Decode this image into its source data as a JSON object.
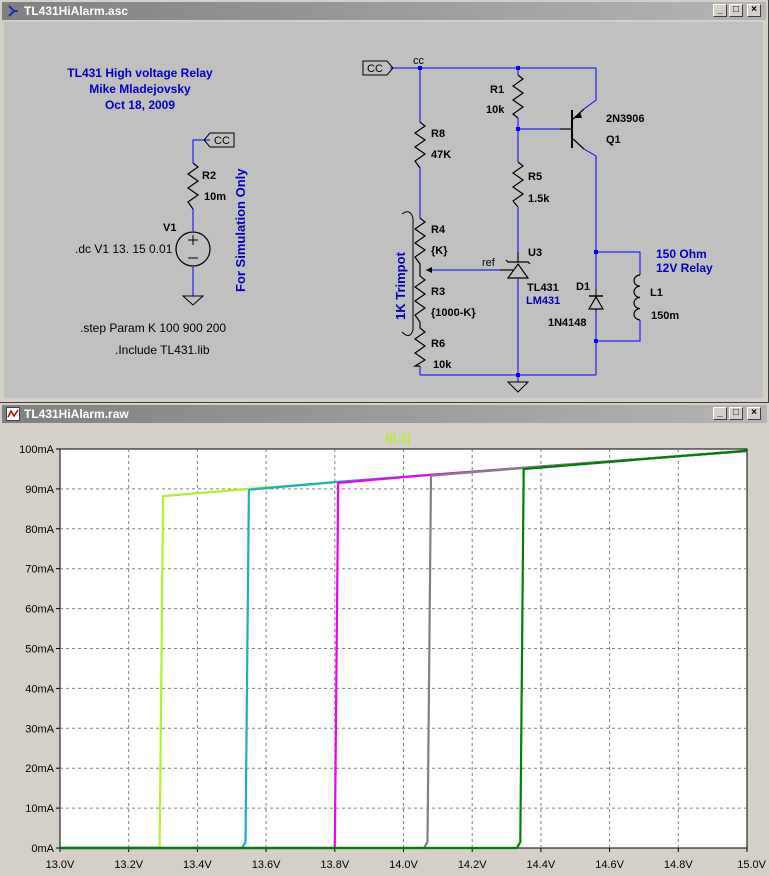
{
  "schematic_window": {
    "title": "TL431HiAlarm.asc",
    "buttons": {
      "minimize": "_",
      "maximize": "□",
      "close": "×"
    },
    "comment": {
      "line1": "TL431 High voltage Relay",
      "line2": "Mike Mladejovsky",
      "line3": "Oct 18, 2009"
    },
    "sim_note": "For Simulation Only",
    "relay_note": {
      "line1": "150 Ohm",
      "line2": "12V Relay"
    },
    "trimpot_label": "1K Trimpot",
    "directives": {
      "dc": ".dc V1 13. 15 0.01",
      "step": ".step Param K 100 900 200",
      "include": ".Include TL431.lib"
    },
    "nets": {
      "cc_left": "CC",
      "cc_right": "CC",
      "cc_node": "cc",
      "ref": "ref"
    },
    "components": {
      "R2": {
        "name": "R2",
        "value": "10m"
      },
      "V1": {
        "name": "V1"
      },
      "R8": {
        "name": "R8",
        "value": "47K"
      },
      "R4": {
        "name": "R4",
        "value": "{K}"
      },
      "R3": {
        "name": "R3",
        "value": "{1000-K}"
      },
      "R6": {
        "name": "R6",
        "value": "10k"
      },
      "R1": {
        "name": "R1",
        "value": "10k"
      },
      "R5": {
        "name": "R5",
        "value": "1.5k"
      },
      "Q1": {
        "name": "Q1",
        "value": "2N3906"
      },
      "U3": {
        "name": "U3",
        "value": "TL431",
        "alt": "LM431"
      },
      "D1": {
        "name": "D1",
        "value": "1N4148"
      },
      "L1": {
        "name": "L1",
        "value": "150m"
      }
    }
  },
  "waveform_window": {
    "title": "TL431HiAlarm.raw",
    "buttons": {
      "minimize": "_",
      "maximize": "□",
      "close": "×"
    },
    "trace_label": "I(L1)"
  },
  "colors": {
    "comment_blue": "#0000c0",
    "wire_blue": "#0000ff",
    "background_gray": "#c0c0c0",
    "trace_1": "#b4f02c",
    "trace_2": "#1ab0b8",
    "trace_3": "#f000f0",
    "trace_4": "#808080",
    "trace_5": "#008000"
  },
  "chart_data": {
    "type": "line",
    "title": "I(L1)",
    "xlabel": "",
    "ylabel": "",
    "x_ticks": [
      "13.0V",
      "13.2V",
      "13.4V",
      "13.6V",
      "13.8V",
      "14.0V",
      "14.2V",
      "14.4V",
      "14.6V",
      "14.8V",
      "15.0V"
    ],
    "y_ticks": [
      "0mA",
      "10mA",
      "20mA",
      "30mA",
      "40mA",
      "50mA",
      "60mA",
      "70mA",
      "80mA",
      "90mA",
      "100mA"
    ],
    "xlim": [
      13.0,
      15.0
    ],
    "ylim": [
      0,
      100
    ],
    "grid": true,
    "series": [
      {
        "color": "#b4f02c",
        "points": [
          [
            13.0,
            0
          ],
          [
            13.29,
            0
          ],
          [
            13.3,
            88.2
          ],
          [
            13.55,
            90.0
          ],
          [
            15.0,
            99.5
          ]
        ]
      },
      {
        "color": "#1ab0b8",
        "points": [
          [
            13.0,
            0
          ],
          [
            13.53,
            0
          ],
          [
            13.54,
            1.5
          ],
          [
            13.55,
            89.8
          ],
          [
            13.8,
            91.7
          ],
          [
            15.0,
            99.5
          ]
        ]
      },
      {
        "color": "#f000f0",
        "points": [
          [
            13.0,
            0
          ],
          [
            13.8,
            0
          ],
          [
            13.81,
            91.5
          ],
          [
            14.06,
            93.4
          ],
          [
            15.0,
            99.5
          ]
        ]
      },
      {
        "color": "#808080",
        "points": [
          [
            13.0,
            0
          ],
          [
            14.06,
            0
          ],
          [
            14.07,
            1.5
          ],
          [
            14.08,
            93.3
          ],
          [
            14.34,
            95.2
          ],
          [
            15.0,
            99.5
          ]
        ]
      },
      {
        "color": "#008000",
        "points": [
          [
            13.0,
            0
          ],
          [
            14.33,
            0
          ],
          [
            14.34,
            1.5
          ],
          [
            14.35,
            95.0
          ],
          [
            15.0,
            99.6
          ]
        ]
      }
    ]
  }
}
